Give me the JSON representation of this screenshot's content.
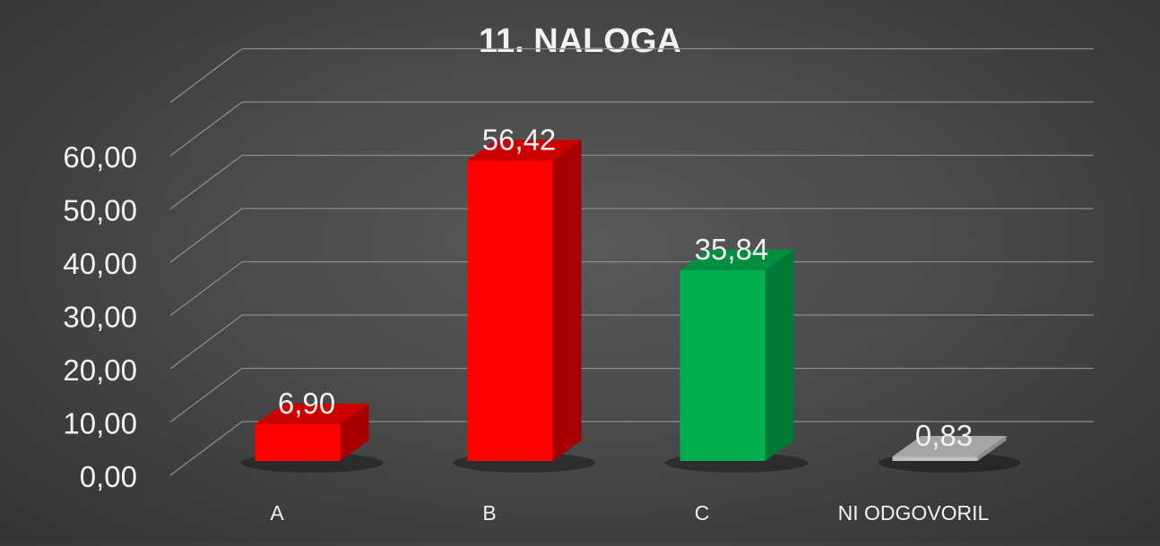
{
  "chart_data": {
    "type": "bar",
    "title": "11. NALOGA",
    "categories": [
      "A",
      "B",
      "C",
      "NI ODGOVORIL"
    ],
    "values": [
      6.9,
      56.42,
      35.84,
      0.83
    ],
    "value_labels": [
      "6,90",
      "56,42",
      "35,84",
      "0,83"
    ],
    "y_ticks": [
      "0,00",
      "10,00",
      "20,00",
      "30,00",
      "40,00",
      "50,00",
      "60,00"
    ],
    "ylim": [
      0,
      60
    ],
    "grid": true,
    "legend": "none",
    "style": "3d-column"
  },
  "colors": {
    "bars": [
      "#ff0000",
      "#ff0000",
      "#00b050",
      "#bfbfbf"
    ],
    "bars_side": [
      "#a80000",
      "#a80000",
      "#007a36",
      "#8c8c8c"
    ],
    "bars_top": [
      "#cc0000",
      "#cc0000",
      "#008f3f",
      "#a6a6a6"
    ],
    "text": "#f2f2f2",
    "grid": "#8c8c8c"
  }
}
